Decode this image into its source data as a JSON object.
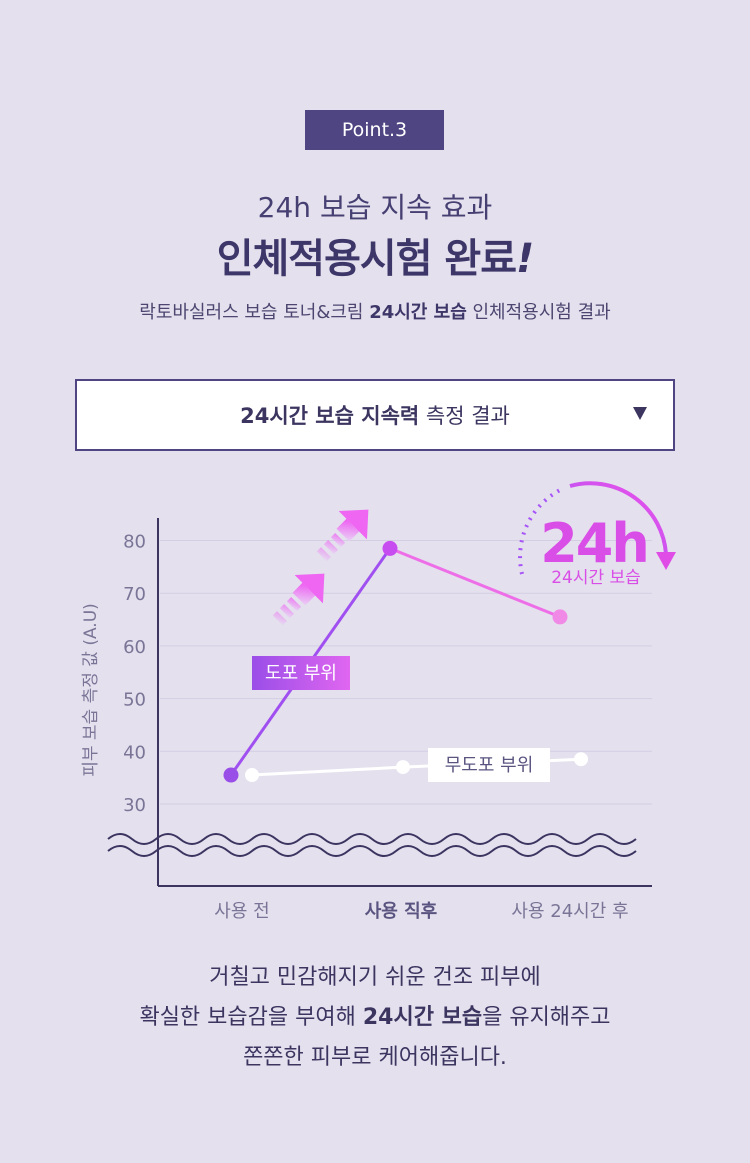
{
  "badge": "Point.3",
  "subtitle": "24h 보습 지속 효과",
  "title_main": "인체적용시험 완료",
  "title_mark": "!",
  "desc": {
    "pre": "락토바실러스 보습 토너&크림 ",
    "bold": "24시간 보습",
    "post": " 인체적용시험 결과"
  },
  "dropdown": {
    "bold": "24시간 보습 지속력",
    "rest": " 측정 결과"
  },
  "chart_data": {
    "type": "line",
    "ylabel": "피부 보습 측정 값 (A.U)",
    "yticks": [
      30,
      40,
      50,
      60,
      70,
      80
    ],
    "ylim": [
      30,
      80
    ],
    "grid": true,
    "categories": [
      "사용 전",
      "사용 직후",
      "사용 24시간 후"
    ],
    "highlight_category": "사용 직후",
    "series": [
      {
        "name": "도포 부위",
        "values": [
          35.5,
          78.5,
          65.5
        ],
        "color": "#b452f0"
      },
      {
        "name": "무도포 부위",
        "values": [
          35.5,
          37,
          38.5
        ],
        "color": "#ffffff"
      }
    ],
    "badge": {
      "big": "24h",
      "small": "24시간 보습",
      "color": "#e04ce6"
    }
  },
  "footer": {
    "line1": "거칠고 민감해지기 쉬운 건조 피부에",
    "line2_pre": "확실한 보습감을 부여해 ",
    "line2_bold": "24시간 보습",
    "line2_post": "을 유지해주고",
    "line3": "쫀쫀한 피부로 케어해줍니다."
  }
}
